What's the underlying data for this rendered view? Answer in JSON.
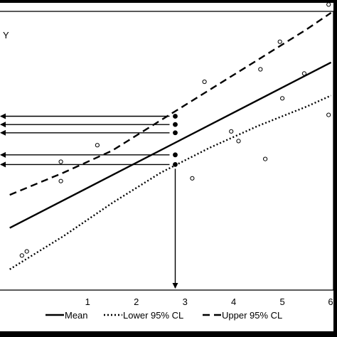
{
  "chart_data": {
    "type": "scatter",
    "title": "",
    "xlabel": "",
    "ylabel": "Y",
    "x_ticks": [
      "1",
      "2",
      "3",
      "4",
      "5",
      "6"
    ],
    "xlim": [
      -0.8,
      6.05
    ],
    "ylim": [
      0.0,
      10.0
    ],
    "grid": false,
    "legend_position": "bottom",
    "colors": {
      "ink": "#000000",
      "background": "#ffffff"
    },
    "legend": [
      {
        "label": "Mean",
        "style": "solid"
      },
      {
        "label": "Lower 95% CL",
        "style": "dotted"
      },
      {
        "label": "Upper 95% CL",
        "style": "dashed"
      }
    ],
    "series": [
      {
        "name": "Mean",
        "style": "solid",
        "x": [
          -0.6,
          6.0
        ],
        "y": [
          2.2,
          8.2
        ]
      },
      {
        "name": "Lower 95% CL",
        "style": "dotted",
        "x": [
          -0.6,
          0.5,
          1.5,
          2.5,
          3.5,
          4.5,
          5.5,
          6.0
        ],
        "y": [
          0.7,
          1.9,
          3.1,
          4.2,
          5.1,
          5.9,
          6.6,
          7.0
        ]
      },
      {
        "name": "Upper 95% CL",
        "style": "dashed",
        "x": [
          -0.6,
          0.5,
          1.5,
          2.5,
          3.5,
          4.5,
          5.5,
          6.0
        ],
        "y": [
          3.4,
          4.2,
          5.0,
          6.1,
          7.2,
          8.3,
          9.4,
          10.0
        ]
      }
    ],
    "observations": {
      "x": [
        -0.35,
        -0.25,
        0.45,
        0.45,
        1.2,
        3.15,
        3.4,
        3.95,
        4.1,
        4.55,
        4.65,
        4.95,
        5.0,
        5.45,
        5.95,
        5.95
      ],
      "y": [
        1.2,
        1.35,
        3.9,
        4.6,
        5.2,
        4.0,
        7.5,
        5.7,
        5.35,
        7.95,
        4.7,
        8.95,
        6.9,
        7.8,
        6.3,
        10.3
      ]
    },
    "predicted_points": {
      "x": [
        2.8,
        2.8,
        2.8,
        2.8,
        2.8
      ],
      "y": [
        4.5,
        4.85,
        5.65,
        5.95,
        6.25
      ]
    },
    "predicted_x": 2.8
  }
}
